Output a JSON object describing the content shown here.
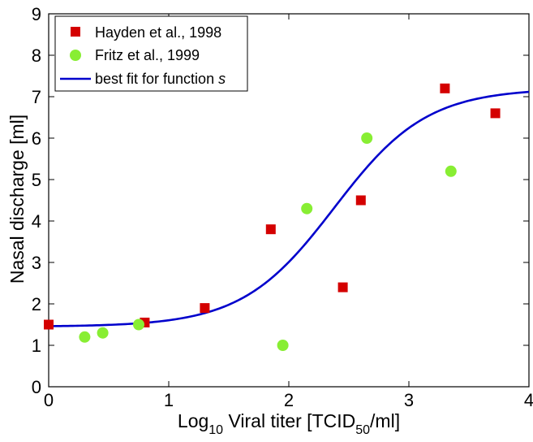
{
  "chart_data": {
    "type": "scatter",
    "xlabel": {
      "prefix": "Log",
      "prefix_sub": "10",
      "main": " Viral titer [TCID",
      "main_sub": "50",
      "suffix": "/ml]"
    },
    "ylabel": "Nasal discharge [ml]",
    "xlim": [
      0,
      4
    ],
    "ylim": [
      0,
      9
    ],
    "xticks": [
      "0",
      "1",
      "2",
      "3",
      "4"
    ],
    "yticks": [
      "0",
      "1",
      "2",
      "3",
      "4",
      "5",
      "6",
      "7",
      "8",
      "9"
    ],
    "grid": false,
    "legend_position": "top-left",
    "series": [
      {
        "name": "Hayden et al., 1998",
        "marker": "square",
        "color": "#d40000",
        "points": [
          [
            0.0,
            1.5
          ],
          [
            0.8,
            1.55
          ],
          [
            1.3,
            1.9
          ],
          [
            1.85,
            3.8
          ],
          [
            2.45,
            2.4
          ],
          [
            2.6,
            4.5
          ],
          [
            3.3,
            7.2
          ],
          [
            3.72,
            6.6
          ]
        ]
      },
      {
        "name": "Fritz et al., 1999",
        "marker": "circle",
        "color": "#88ee33",
        "points": [
          [
            0.3,
            1.2
          ],
          [
            0.45,
            1.3
          ],
          [
            0.75,
            1.5
          ],
          [
            1.95,
            1.0
          ],
          [
            2.15,
            4.3
          ],
          [
            2.65,
            6.0
          ],
          [
            3.35,
            5.2
          ]
        ]
      },
      {
        "name_prefix": "best fit for function ",
        "name_italic": "s",
        "type": "line",
        "color": "#0000cc",
        "function": "sigmoid",
        "params": {
          "base": 1.45,
          "amplitude": 5.75,
          "midpoint": 2.38,
          "steepness": 2.6
        }
      }
    ]
  }
}
